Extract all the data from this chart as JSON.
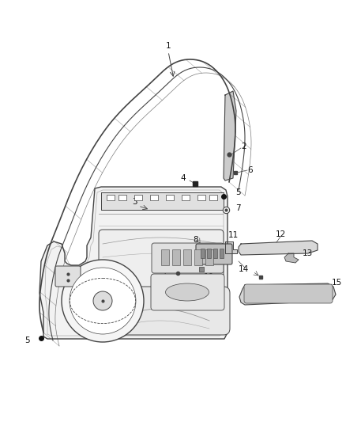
{
  "background_color": "#ffffff",
  "fig_width": 4.38,
  "fig_height": 5.33,
  "dpi": 100,
  "line_color": "#444444",
  "label_fontsize": 7.5,
  "label_color": "#111111"
}
